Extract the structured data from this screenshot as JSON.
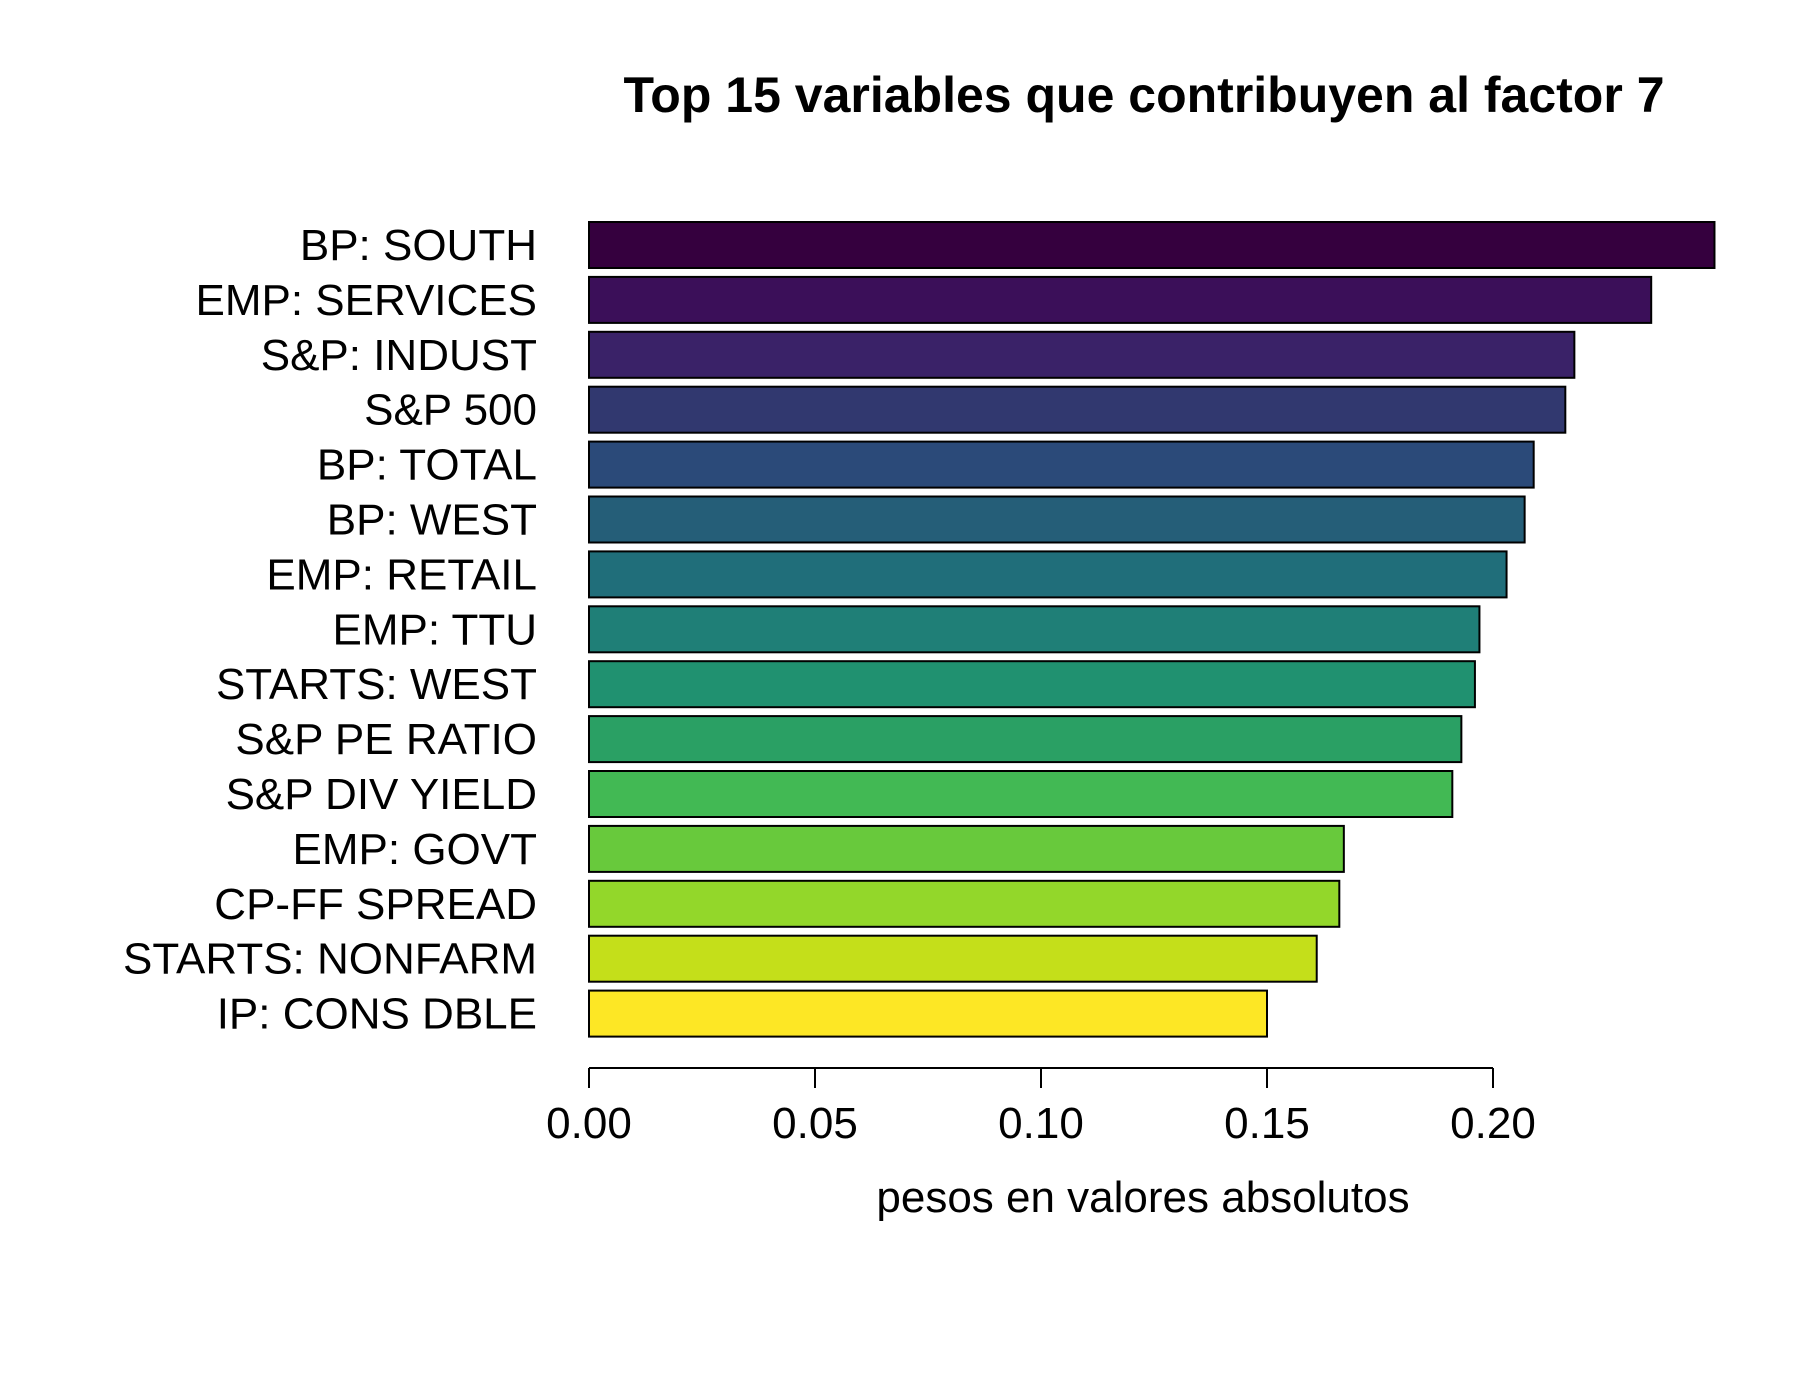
{
  "chart_data": {
    "type": "bar",
    "orientation": "horizontal",
    "title": "Top 15 variables que contribuyen al factor 7",
    "xlabel": "pesos en valores absolutos",
    "ylabel": "",
    "xlim": [
      0,
      0.25
    ],
    "xticks": [
      0.0,
      0.05,
      0.1,
      0.15,
      0.2
    ],
    "xtick_labels": [
      "0.00",
      "0.05",
      "0.10",
      "0.15",
      "0.20"
    ],
    "grid": false,
    "legend": "none",
    "categories": [
      "BP: SOUTH",
      "EMP: SERVICES",
      "S&P: INDUST",
      "S&P 500",
      "BP: TOTAL",
      "BP: WEST",
      "EMP: RETAIL",
      "EMP: TTU",
      "STARTS: WEST",
      "S&P PE RATIO",
      "S&P DIV YIELD",
      "EMP: GOVT",
      "CP-FF SPREAD",
      "STARTS: NONFARM",
      "IP: CONS DBLE"
    ],
    "values": [
      0.249,
      0.235,
      0.218,
      0.216,
      0.209,
      0.207,
      0.203,
      0.197,
      0.196,
      0.193,
      0.191,
      0.167,
      0.166,
      0.161,
      0.15
    ],
    "colors": [
      "#35003e",
      "#3b0f59",
      "#3a2268",
      "#31386f",
      "#2b4a79",
      "#255e78",
      "#206e7a",
      "#1f7f77",
      "#209170",
      "#2aa064",
      "#42b954",
      "#68c93c",
      "#93d72a",
      "#c4df1a",
      "#fde725"
    ]
  }
}
